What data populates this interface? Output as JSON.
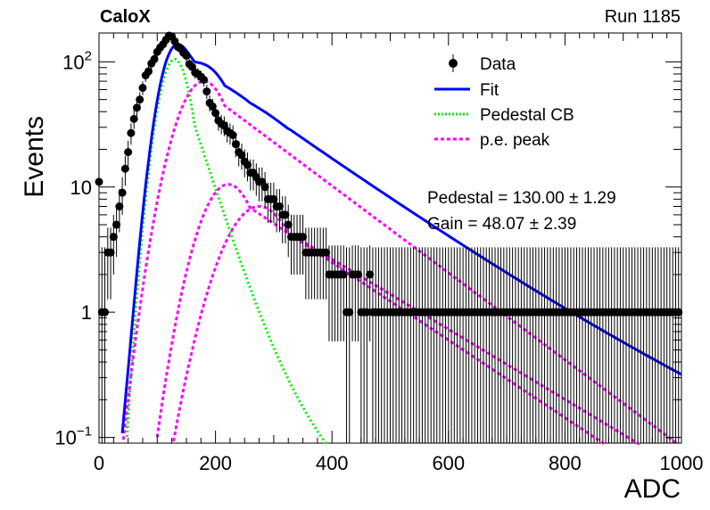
{
  "header": {
    "experiment": "CaloX",
    "run": "Run 1185"
  },
  "chart_data": {
    "type": "scatter",
    "xlabel": "ADC",
    "ylabel": "Events",
    "xlim": [
      0,
      1000
    ],
    "ylim": [
      0.09,
      170
    ],
    "yscale": "log",
    "grid": false,
    "legend_position": "top-right",
    "x_ticks": [
      {
        "value": 0,
        "label": "0"
      },
      {
        "value": 200,
        "label": "200"
      },
      {
        "value": 400,
        "label": "400"
      },
      {
        "value": 600,
        "label": "600"
      },
      {
        "value": 800,
        "label": "800"
      },
      {
        "value": 1000,
        "label": "1000"
      }
    ],
    "y_ticks": [
      {
        "value": 0.1,
        "base": "10",
        "exp": "−1"
      },
      {
        "value": 1,
        "base": "1",
        "exp": ""
      },
      {
        "value": 10,
        "base": "10",
        "exp": ""
      },
      {
        "value": 100,
        "base": "10",
        "exp": "2"
      }
    ],
    "legend": [
      {
        "label": "Data",
        "style": "marker",
        "color": "#000000"
      },
      {
        "label": "Fit",
        "style": "solid",
        "color": "#0000ff"
      },
      {
        "label": "Pedestal CB",
        "style": "dotted",
        "color": "#00ee00"
      },
      {
        "label": "p.e. peak",
        "style": "dashed",
        "color": "#ff00ff"
      }
    ],
    "annotations": [
      {
        "text": "Pedestal = 130.00 ± 1.29"
      },
      {
        "text": "Gain = 48.07 ± 2.39"
      }
    ],
    "data_series": {
      "name": "Data",
      "x": [
        0,
        5,
        10,
        15,
        20,
        25,
        30,
        35,
        40,
        45,
        50,
        55,
        60,
        65,
        70,
        75,
        80,
        85,
        90,
        95,
        100,
        105,
        110,
        115,
        120,
        125,
        130,
        135,
        140,
        145,
        150,
        155,
        160,
        165,
        170,
        175,
        180,
        185,
        190,
        195,
        200,
        205,
        210,
        215,
        220,
        225,
        230,
        235,
        240,
        245,
        250,
        255,
        260,
        265,
        270,
        275,
        280,
        285,
        290,
        295,
        300,
        305,
        310,
        315,
        320,
        325,
        330,
        335,
        340,
        345,
        350,
        355,
        360,
        365,
        370,
        375,
        380,
        385,
        390,
        395,
        400,
        405,
        410,
        415,
        420,
        425,
        430,
        435,
        440,
        445,
        450,
        455,
        460,
        465,
        470,
        475,
        480,
        485,
        490,
        495,
        500,
        505,
        510,
        515,
        520,
        525,
        530,
        535,
        540,
        545,
        550,
        555,
        560,
        565,
        570,
        575,
        580,
        585,
        590,
        595,
        600,
        605,
        610,
        615,
        620,
        625,
        630,
        635,
        640,
        645,
        650,
        655,
        660,
        665,
        670,
        675,
        680,
        685,
        690,
        695,
        700,
        705,
        710,
        715,
        720,
        725,
        730,
        735,
        740,
        745,
        750,
        755,
        760,
        765,
        770,
        775,
        780,
        785,
        790,
        795,
        800,
        805,
        810,
        815,
        820,
        825,
        830,
        835,
        840,
        845,
        850,
        855,
        860,
        865,
        870,
        875,
        880,
        885,
        890,
        895,
        900,
        905,
        910,
        915,
        920,
        925,
        930,
        935,
        940,
        945,
        950,
        955,
        960,
        965,
        970,
        975,
        980,
        985,
        990,
        995
      ],
      "y": [
        11,
        1,
        1,
        3,
        3,
        4,
        5,
        7,
        9,
        14,
        19,
        27,
        35,
        43,
        50,
        62,
        78,
        84,
        97,
        105,
        120,
        130,
        138,
        150,
        162,
        160,
        146,
        132,
        128,
        118,
        112,
        96,
        91,
        82,
        80,
        76,
        72,
        58,
        47,
        44,
        39,
        34,
        32,
        31,
        28,
        27,
        26,
        22,
        19,
        18,
        16,
        15,
        13,
        13,
        12,
        11,
        11,
        10,
        8,
        8,
        8,
        7,
        7,
        6,
        6,
        5,
        4,
        4,
        4,
        4,
        4,
        3,
        3,
        3,
        3,
        3,
        3,
        3,
        3,
        2,
        2,
        2,
        2,
        2,
        2,
        1,
        1,
        2,
        2,
        2,
        1,
        1,
        1,
        2,
        1,
        1,
        1,
        1,
        1,
        1,
        1,
        1,
        1,
        1,
        1,
        1,
        1,
        1,
        1,
        1,
        1,
        1,
        1,
        1,
        1,
        1,
        1,
        1,
        1,
        1,
        1,
        1,
        1,
        1,
        1,
        1,
        1,
        1,
        1,
        1,
        1,
        1,
        1,
        1,
        1,
        1,
        1,
        1,
        1,
        1,
        1,
        1,
        1,
        1,
        1,
        1,
        1,
        1,
        1,
        1,
        1,
        1,
        1,
        1,
        1,
        1,
        1,
        1,
        1,
        1,
        1,
        1,
        1,
        1,
        1,
        1,
        1,
        1,
        1,
        1,
        1,
        1,
        1,
        1,
        1,
        1,
        1,
        1,
        1,
        1,
        1,
        1,
        1,
        1,
        1,
        1,
        1,
        1,
        1,
        1,
        1,
        1,
        1,
        1,
        1,
        1,
        1,
        1,
        1,
        1
      ]
    },
    "model": {
      "pedestal_mean": 130.0,
      "pedestal_sigma": 22,
      "pedestal_amplitude": 105,
      "pedestal_tail_scale": 90,
      "pedestal_tail_amplitude": 0.6,
      "pe_peaks": [
        {
          "mean": 180,
          "sigma_left": 38,
          "amplitude": 70,
          "tail_scale": 125
        },
        {
          "mean": 222,
          "sigma_left": 40,
          "amplitude": 10.5,
          "tail_scale": 140
        },
        {
          "mean": 275,
          "sigma_left": 50,
          "amplitude": 7,
          "tail_scale": 155
        }
      ],
      "fit_tail_scale": 260,
      "fit_tail_amplitude": 1.9
    }
  }
}
